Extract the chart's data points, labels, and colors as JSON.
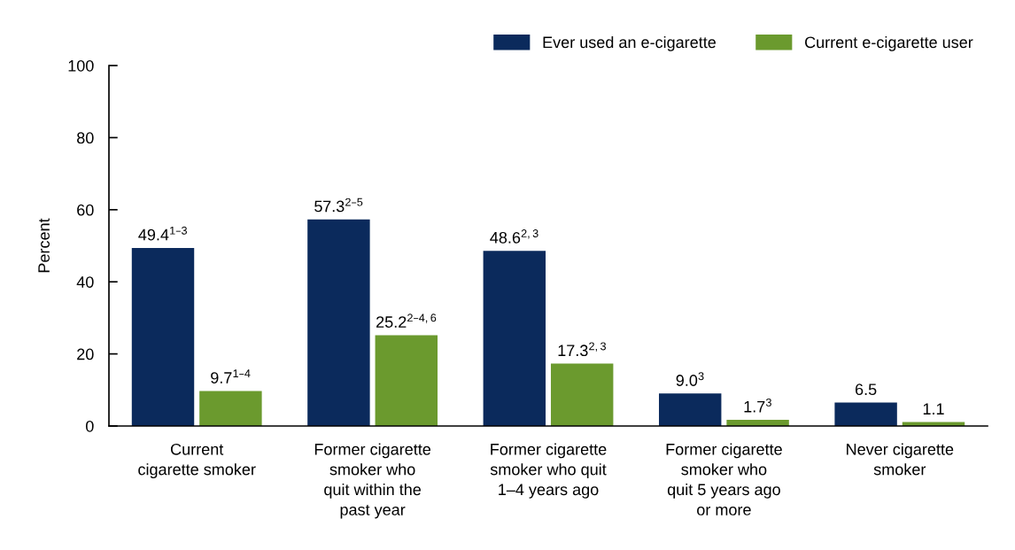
{
  "chart_data": {
    "type": "bar",
    "ylabel": "Percent",
    "categories": [
      "Current\ncigarette smoker",
      "Former cigarette\nsmoker who\nquit within the\npast year",
      "Former cigarette\nsmoker who quit\n1–4 years ago",
      "Former cigarette\nsmoker who\nquit 5 years ago\nor more",
      "Never cigarette\nsmoker"
    ],
    "series": [
      {
        "name": "Ever used an e-cigarette",
        "color": "#0b2a5c",
        "values": [
          49.4,
          57.3,
          48.6,
          9.0,
          6.5
        ],
        "value_labels": [
          "49.4$^{1–3}$",
          "57.3$^{2–5}$",
          "48.6$^{2,3}$",
          "9.0$^{3}$",
          "6.5"
        ]
      },
      {
        "name": "Current e-cigarette user",
        "color": "#6b9a2e",
        "values": [
          9.7,
          25.2,
          17.3,
          1.7,
          1.1
        ],
        "value_labels": [
          "9.7$^{1–4}$",
          "25.2$^{2–4,6}$",
          "17.3$^{2,3}$",
          "1.7$^{3}$",
          "1.1"
        ]
      }
    ],
    "ylim": [
      0,
      100
    ],
    "yticks": [
      0,
      20,
      40,
      60,
      80,
      100
    ],
    "grid": false,
    "legend": "top right"
  }
}
